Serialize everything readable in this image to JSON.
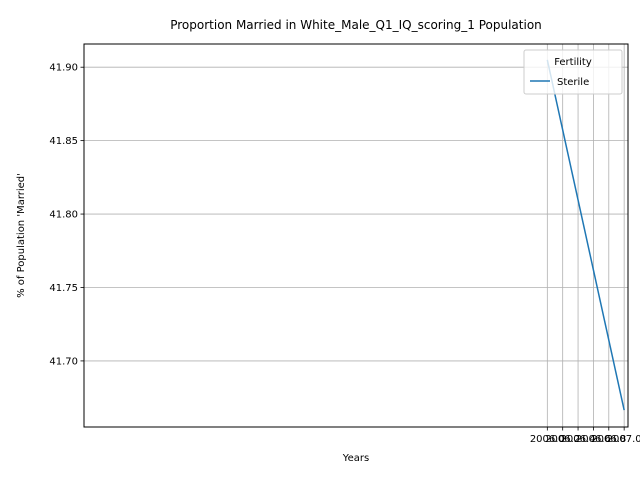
{
  "chart_data": {
    "type": "line",
    "title": "Proportion Married in White_Male_Q1_IQ_scoring_1 Population",
    "xlabel": "Years",
    "ylabel": "% of Population 'Married'",
    "xlim": [
      1999.97,
      2007.05
    ],
    "ylim": [
      41.655,
      41.9158
    ],
    "xticks": [
      2006.0,
      2006.2,
      2006.4,
      2006.6,
      2006.8,
      2007.0
    ],
    "xtick_labels": [
      "2006.0",
      "2006.2",
      "2006.4",
      "2006.6",
      "2006.8",
      "2007.0"
    ],
    "yticks": [
      41.7,
      41.75,
      41.8,
      41.85,
      41.9
    ],
    "ytick_labels": [
      "41.70",
      "41.75",
      "41.80",
      "41.85",
      "41.90"
    ],
    "grid": true,
    "legend": {
      "title": "Fertility",
      "position": "top-right"
    },
    "series": [
      {
        "name": "Sterile",
        "color": "#1f77b4",
        "x": [
          2006.0,
          2007.0
        ],
        "y": [
          41.905,
          41.6665
        ]
      }
    ]
  }
}
